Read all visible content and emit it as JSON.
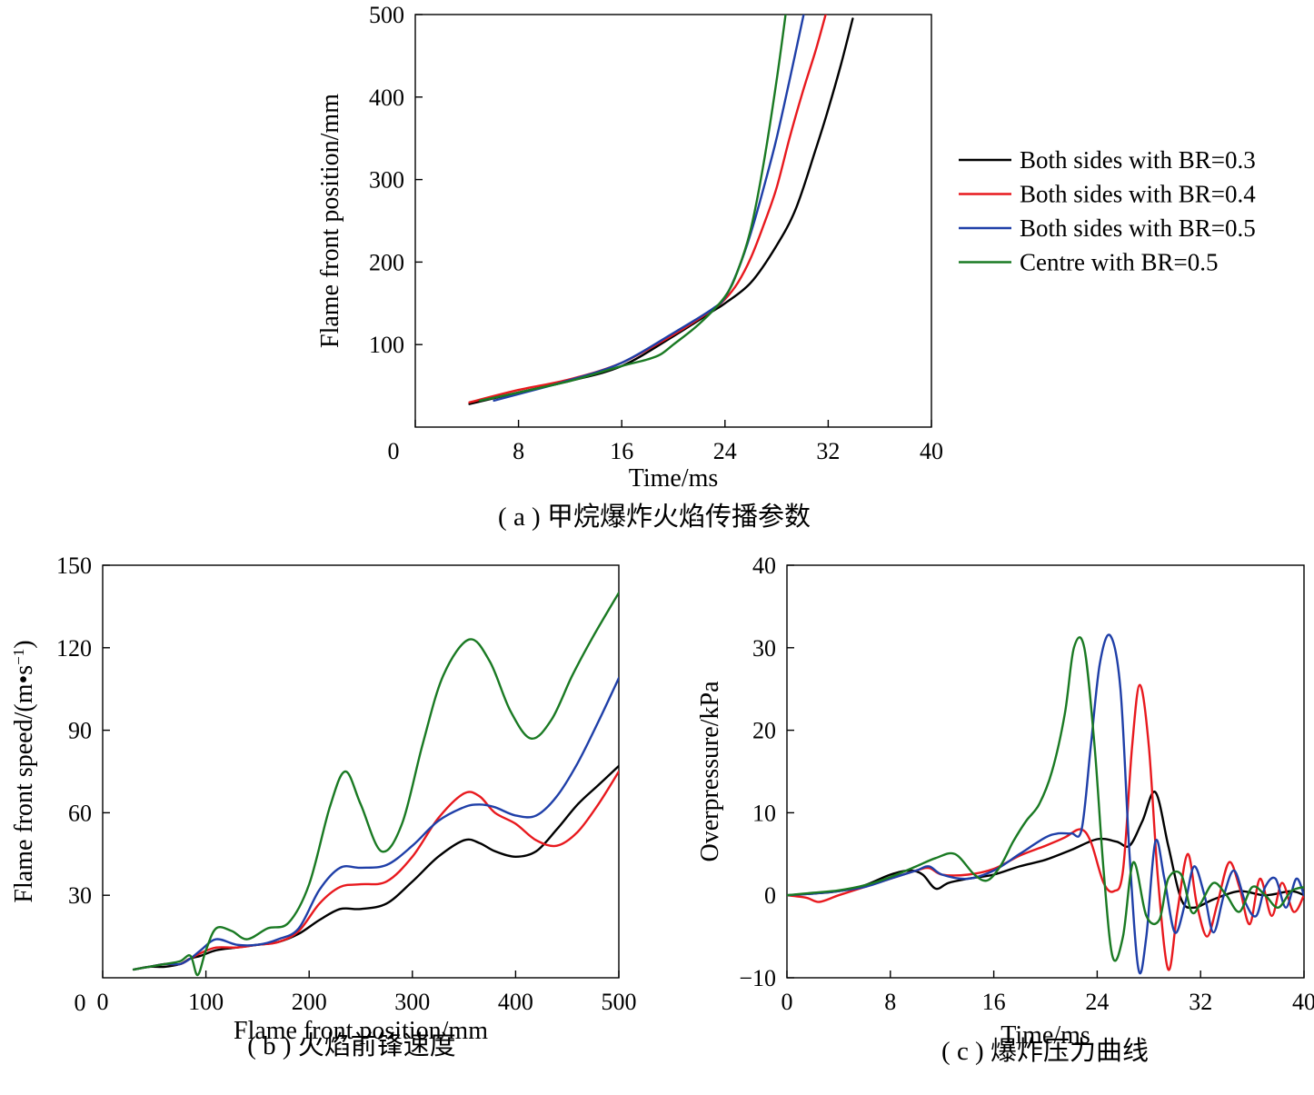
{
  "colors": {
    "black": "#000000",
    "red": "#e8191e",
    "blue": "#1f3fa8",
    "green": "#1a7a23"
  },
  "chart_data": [
    {
      "id": "a",
      "type": "line",
      "caption": "( a ) 甲烷爆炸火焰传播参数",
      "xlabel": "Time/ms",
      "ylabel": "Flame front position/mm",
      "xlim": [
        0,
        40
      ],
      "ylim": [
        0,
        500
      ],
      "xticks": [
        "0",
        "8",
        "16",
        "24",
        "32",
        "40"
      ],
      "yticks": [
        "100",
        "200",
        "300",
        "400",
        "500"
      ],
      "grid": false,
      "legend": "right",
      "series": [
        {
          "name": "Both sides with BR=0.3",
          "color": "black",
          "x": [
            4.2,
            8,
            12,
            16,
            20,
            23,
            24,
            26,
            28,
            29.5,
            31,
            32,
            33,
            33.9
          ],
          "y": [
            28,
            42,
            56,
            74,
            110,
            140,
            150,
            175,
            220,
            265,
            335,
            385,
            440,
            495
          ]
        },
        {
          "name": "Both sides with BR=0.4",
          "color": "red",
          "x": [
            4.2,
            8,
            12,
            16,
            20,
            23,
            24,
            25,
            26,
            27,
            28,
            29,
            30,
            31,
            31.8
          ],
          "y": [
            30,
            45,
            58,
            78,
            112,
            142,
            155,
            175,
            205,
            245,
            290,
            350,
            405,
            455,
            500
          ]
        },
        {
          "name": "Both sides with BR=0.5",
          "color": "blue",
          "x": [
            6.1,
            8,
            12,
            16,
            20,
            23,
            24,
            25,
            26,
            27,
            28,
            29,
            30.1
          ],
          "y": [
            32,
            40,
            57,
            78,
            114,
            143,
            157,
            190,
            235,
            290,
            350,
            420,
            500
          ]
        },
        {
          "name": "Centre with BR=0.5",
          "color": "green",
          "x": [
            5,
            8,
            12,
            16,
            18,
            19,
            20,
            22,
            24,
            25,
            26,
            27,
            28,
            28.7
          ],
          "y": [
            32,
            42,
            56,
            74,
            82,
            88,
            100,
            125,
            158,
            190,
            240,
            320,
            420,
            500
          ]
        }
      ]
    },
    {
      "id": "b",
      "type": "line",
      "caption": "( b ) 火焰前锋速度",
      "xlabel": "Flame front position/mm",
      "ylabel_main": "Flame front speed/(m•s",
      "ylabel_exp": "−1",
      "ylabel_close": ")",
      "xlim": [
        0,
        500
      ],
      "ylim": [
        0,
        150
      ],
      "xticks": [
        "0",
        "100",
        "200",
        "300",
        "400",
        "500"
      ],
      "yticks": [
        "30",
        "60",
        "90",
        "120",
        "150"
      ],
      "grid": false,
      "series": [
        {
          "color": "black",
          "x": [
            30,
            45,
            60,
            75,
            85,
            95,
            110,
            130,
            150,
            170,
            190,
            210,
            230,
            250,
            275,
            300,
            325,
            350,
            365,
            380,
            400,
            420,
            440,
            460,
            480,
            500
          ],
          "y": [
            3,
            4,
            4,
            5,
            7,
            8,
            10,
            11,
            12,
            13,
            16,
            21,
            25,
            25,
            27,
            35,
            44,
            50,
            49,
            46,
            44,
            46,
            54,
            63,
            70,
            77
          ]
        },
        {
          "color": "red",
          "x": [
            30,
            45,
            60,
            75,
            85,
            95,
            110,
            130,
            150,
            170,
            190,
            210,
            230,
            250,
            275,
            300,
            325,
            350,
            365,
            380,
            400,
            420,
            440,
            460,
            480,
            500
          ],
          "y": [
            3,
            4,
            5,
            5,
            7,
            9,
            11,
            11,
            12,
            13,
            17,
            27,
            33,
            34,
            35,
            44,
            58,
            67,
            66,
            60,
            56,
            50,
            48,
            53,
            63,
            75
          ]
        },
        {
          "color": "blue",
          "x": [
            30,
            45,
            60,
            75,
            85,
            95,
            110,
            130,
            150,
            170,
            190,
            210,
            230,
            250,
            275,
            300,
            325,
            350,
            365,
            380,
            400,
            420,
            440,
            460,
            480,
            500
          ],
          "y": [
            3,
            4,
            5,
            5,
            7,
            10,
            14,
            12,
            12,
            14,
            18,
            32,
            40,
            40,
            41,
            48,
            57,
            62,
            63,
            62,
            59,
            59,
            66,
            78,
            93,
            109
          ]
        },
        {
          "color": "green",
          "x": [
            30,
            45,
            60,
            75,
            85,
            92,
            100,
            110,
            125,
            140,
            160,
            180,
            200,
            220,
            235,
            250,
            270,
            290,
            310,
            330,
            355,
            375,
            395,
            415,
            435,
            455,
            475,
            500
          ],
          "y": [
            3,
            4,
            5,
            6,
            8,
            1,
            10,
            18,
            17,
            14,
            18,
            20,
            34,
            62,
            75,
            63,
            46,
            56,
            85,
            110,
            123,
            115,
            97,
            87,
            94,
            110,
            124,
            140
          ]
        }
      ]
    },
    {
      "id": "c",
      "type": "line",
      "caption": "( c ) 爆炸压力曲线",
      "xlabel": "Time/ms",
      "ylabel": "Overpressure/kPa",
      "xlim": [
        0,
        40
      ],
      "ylim": [
        -10,
        40
      ],
      "xticks": [
        "0",
        "8",
        "16",
        "24",
        "32",
        "40"
      ],
      "yticks": [
        "−10",
        "0",
        "10",
        "20",
        "30",
        "40"
      ],
      "grid": false,
      "series": [
        {
          "color": "black",
          "x": [
            0,
            2,
            4,
            6,
            8,
            9.5,
            10.5,
            11.5,
            12.5,
            14,
            16,
            18,
            20,
            22,
            24,
            25.5,
            26.5,
            27.5,
            28.5,
            29.5,
            30.5,
            31.5,
            33,
            35,
            37,
            39,
            40
          ],
          "y": [
            0,
            0.2,
            0.5,
            1.2,
            2.5,
            3,
            2.5,
            0.8,
            1.5,
            2,
            2.5,
            3.5,
            4.3,
            5.5,
            6.8,
            6.5,
            6,
            9,
            12.5,
            6,
            -0.5,
            -1.5,
            -0.5,
            0.5,
            0,
            0.5,
            0
          ]
        },
        {
          "color": "red",
          "x": [
            0,
            1.5,
            2.5,
            4,
            6,
            8,
            10,
            11,
            12,
            14,
            16,
            18,
            20,
            21.5,
            22.7,
            23.5,
            24.5,
            25.3,
            26,
            26.7,
            27.3,
            28,
            28.7,
            29.5,
            30.2,
            31,
            31.7,
            32.5,
            33.3,
            34.2,
            35,
            35.8,
            36.6,
            37.5,
            38.3,
            39.2,
            40
          ],
          "y": [
            0,
            -0.3,
            -0.8,
            0,
            1,
            2,
            3,
            3.3,
            2.5,
            2.5,
            3.2,
            4.8,
            6,
            7,
            8,
            6.5,
            1.5,
            0.5,
            3,
            18,
            25.5,
            18,
            2,
            -9,
            -2,
            5,
            -1,
            -5,
            -1,
            4,
            1,
            -3.5,
            2,
            -2.5,
            1.5,
            -2,
            0
          ]
        },
        {
          "color": "blue",
          "x": [
            0,
            2,
            4,
            6,
            8,
            10,
            11,
            12,
            14,
            16,
            18,
            20,
            21,
            22,
            22.8,
            23.5,
            24.2,
            25,
            25.8,
            26.5,
            27.2,
            27.8,
            28.5,
            29.2,
            30,
            30.8,
            31.5,
            32.3,
            33,
            33.8,
            34.6,
            35.5,
            36.3,
            37,
            37.8,
            38.6,
            39.4,
            40
          ],
          "y": [
            0,
            0.2,
            0.5,
            1,
            2,
            3,
            3.5,
            2.5,
            2,
            3,
            5,
            7,
            7.5,
            7.5,
            8,
            18,
            28,
            31.5,
            25,
            5,
            -9,
            -5,
            6.5,
            2,
            -4.5,
            -1,
            3.5,
            0,
            -4.5,
            0,
            3,
            -1,
            -2.5,
            1,
            2,
            -1.5,
            2,
            0
          ]
        },
        {
          "color": "green",
          "x": [
            0,
            2,
            4,
            6,
            8,
            10,
            11.5,
            13,
            14.5,
            15.5,
            16.5,
            17.5,
            18.5,
            19.5,
            20.5,
            21.5,
            22.2,
            23,
            23.8,
            24.5,
            25.2,
            26,
            26.8,
            27.8,
            28.8,
            29.5,
            30.5,
            31.3,
            32,
            33,
            34,
            35,
            36,
            37,
            38,
            39,
            40
          ],
          "y": [
            0,
            0.3,
            0.6,
            1.2,
            2.2,
            3.5,
            4.5,
            5,
            2.5,
            1.8,
            3.5,
            6.5,
            9,
            11,
            15,
            22,
            30,
            30,
            18,
            3,
            -7.5,
            -5,
            4,
            -2.5,
            -3,
            2,
            2.5,
            -2,
            -1,
            1.5,
            0,
            -2,
            1,
            0,
            -1.5,
            0.5,
            1
          ]
        }
      ]
    }
  ]
}
